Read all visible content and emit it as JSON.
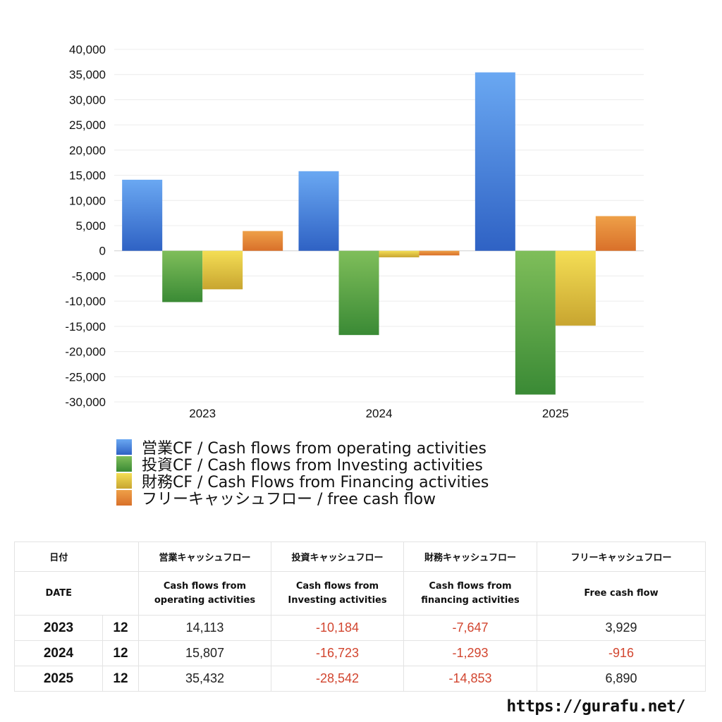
{
  "chart_data": {
    "type": "bar",
    "categories": [
      "2023",
      "2024",
      "2025"
    ],
    "series": [
      {
        "name": "営業CF / Cash flows from operating activities",
        "values": [
          14113,
          15807,
          35432
        ],
        "color_top": "#6aa8f2",
        "color_bottom": "#2f62c4"
      },
      {
        "name": "投資CF / Cash flows from Investing activities",
        "values": [
          -10184,
          -16723,
          -28542
        ],
        "color_top": "#7fbe5a",
        "color_bottom": "#3a8a35"
      },
      {
        "name": "財務CF / Cash Flows from Financing activities",
        "values": [
          -7647,
          -1293,
          -14853
        ],
        "color_top": "#f4de55",
        "color_bottom": "#c8a530"
      },
      {
        "name": "フリーキャッシュフロー / free cash flow",
        "values": [
          3929,
          -916,
          6890
        ],
        "color_top": "#eea048",
        "color_bottom": "#d9702a"
      }
    ],
    "ylim": [
      -30000,
      40000
    ],
    "yticks": [
      40000,
      35000,
      30000,
      25000,
      20000,
      15000,
      10000,
      5000,
      0,
      -5000,
      -10000,
      -15000,
      -20000,
      -25000,
      -30000
    ],
    "ytick_labels": [
      "40,000",
      "35,000",
      "30,000",
      "25,000",
      "20,000",
      "15,000",
      "10,000",
      "5,000",
      "0",
      "-5,000",
      "-10,000",
      "-15,000",
      "-20,000",
      "-25,000",
      "-30,000"
    ],
    "grid": true,
    "legend_position": "bottom-left"
  },
  "table": {
    "header_ja": {
      "date": "日付",
      "operating": "営業キャッシュフロー",
      "investing": "投資キャッシュフロー",
      "financing": "財務キャッシュフロー",
      "free": "フリーキャッシュフロー"
    },
    "header_en": {
      "date": "DATE",
      "operating_1": "Cash flows from",
      "operating_2": "operating activities",
      "investing_1": "Cash flows from",
      "investing_2": "Investing activities",
      "financing_1": "Cash flows from",
      "financing_2": "financing activities",
      "free": "Free cash flow"
    },
    "rows": [
      {
        "year": "2023",
        "month": "12",
        "operating": "14,113",
        "investing": "-10,184",
        "financing": "-7,647",
        "free": "3,929"
      },
      {
        "year": "2024",
        "month": "12",
        "operating": "15,807",
        "investing": "-16,723",
        "financing": "-1,293",
        "free": "-916"
      },
      {
        "year": "2025",
        "month": "12",
        "operating": "35,432",
        "investing": "-28,542",
        "financing": "-14,853",
        "free": "6,890"
      }
    ]
  },
  "footer": {
    "url": "https://gurafu.net/"
  }
}
